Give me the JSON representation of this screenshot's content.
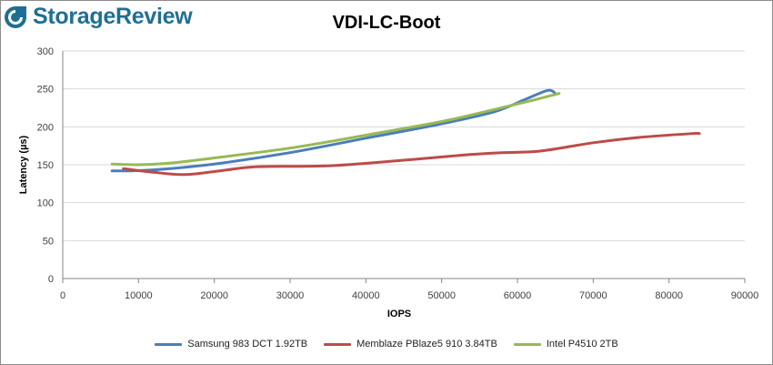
{
  "brand": {
    "name": "StorageReview"
  },
  "chart_data": {
    "type": "line",
    "title": "VDI-LC-Boot",
    "xlabel": "IOPS",
    "ylabel": "Latency (µs)",
    "xlim": [
      0,
      90000
    ],
    "ylim": [
      0,
      300
    ],
    "xticks": [
      0,
      10000,
      20000,
      30000,
      40000,
      50000,
      60000,
      70000,
      80000,
      90000
    ],
    "yticks": [
      0,
      50,
      100,
      150,
      200,
      250,
      300
    ],
    "grid": true,
    "legend_position": "bottom",
    "series": [
      {
        "name": "Samsung 983 DCT 1.92TB",
        "color": "#4a7ebb",
        "x": [
          6500,
          9000,
          13000,
          20000,
          30000,
          40000,
          50000,
          57000,
          61000,
          64000,
          65000
        ],
        "y": [
          142,
          142,
          144,
          151,
          166,
          185,
          204,
          220,
          236,
          248,
          244
        ]
      },
      {
        "name": "Memblaze PBlaze5 910 3.84TB",
        "color": "#be4b48",
        "x": [
          8000,
          12000,
          16000,
          20000,
          25000,
          31000,
          36000,
          45000,
          53000,
          58000,
          63000,
          70000,
          76000,
          83000,
          84000
        ],
        "y": [
          145,
          140,
          137,
          141,
          147,
          148,
          149,
          156,
          163,
          166,
          168,
          179,
          186,
          191,
          191
        ]
      },
      {
        "name": "Intel P4510 2TB",
        "color": "#98b954",
        "x": [
          6500,
          10000,
          14000,
          20000,
          30000,
          40000,
          50000,
          57000,
          62000,
          65500
        ],
        "y": [
          151,
          150,
          152,
          159,
          172,
          189,
          207,
          223,
          235,
          244
        ]
      }
    ]
  }
}
